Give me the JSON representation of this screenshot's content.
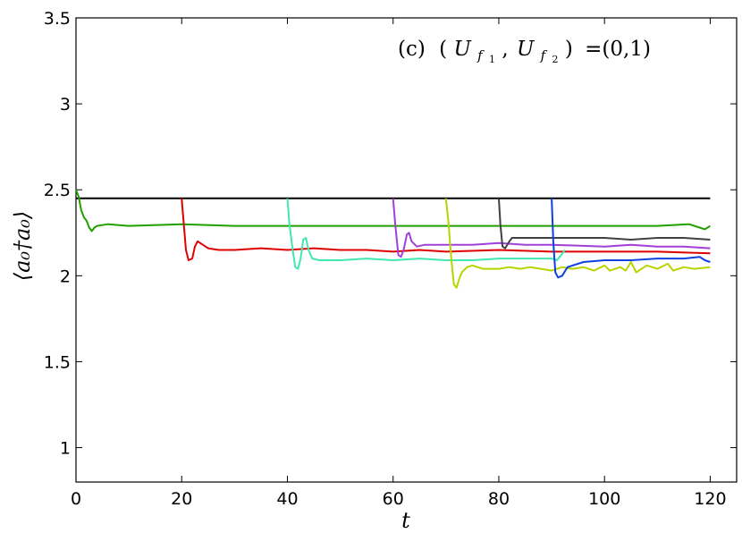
{
  "chart_data": {
    "type": "line",
    "title": "",
    "annotation": "(c) (U_f1, U_f2) =(0,1)",
    "annotation_parts": {
      "prefix": "(c)",
      "open": "(",
      "var": "U",
      "sub1": "f",
      "sub1_sub": "1",
      "sub2": "f",
      "sub2_sub": "2",
      "comma": ",",
      "close": ")",
      "equals_value": "=(0,1)"
    },
    "xlabel": "t",
    "ylabel": "⟨a₀†a₀⟩",
    "xlim": [
      0,
      125
    ],
    "ylim": [
      0.8,
      3.5
    ],
    "xticks": [
      "0",
      "20",
      "40",
      "60",
      "80",
      "100",
      "120"
    ],
    "xtick_values": [
      0,
      20,
      40,
      60,
      80,
      100,
      120
    ],
    "yticks": [
      "1",
      "1.5",
      "2",
      "2.5",
      "3",
      "3.5"
    ],
    "ytick_values": [
      1,
      1.5,
      2,
      2.5,
      3,
      3.5
    ],
    "grid": false,
    "series": [
      {
        "color": "#000000",
        "points": [
          [
            0,
            2.45
          ],
          [
            120,
            2.45
          ]
        ]
      },
      {
        "color": "#22a000",
        "points": [
          [
            0,
            2.5
          ],
          [
            0.5,
            2.46
          ],
          [
            1,
            2.38
          ],
          [
            1.5,
            2.34
          ],
          [
            2,
            2.32
          ],
          [
            2.5,
            2.28
          ],
          [
            3,
            2.26
          ],
          [
            3.5,
            2.28
          ],
          [
            4,
            2.29
          ],
          [
            6,
            2.3
          ],
          [
            10,
            2.29
          ],
          [
            20,
            2.3
          ],
          [
            30,
            2.29
          ],
          [
            40,
            2.29
          ],
          [
            50,
            2.29
          ],
          [
            60,
            2.29
          ],
          [
            70,
            2.29
          ],
          [
            80,
            2.29
          ],
          [
            90,
            2.29
          ],
          [
            100,
            2.29
          ],
          [
            110,
            2.29
          ],
          [
            116,
            2.3
          ],
          [
            118,
            2.28
          ],
          [
            119,
            2.27
          ],
          [
            120,
            2.29
          ]
        ]
      },
      {
        "color": "#e00000",
        "points": [
          [
            20,
            2.45
          ],
          [
            20.4,
            2.3
          ],
          [
            20.8,
            2.15
          ],
          [
            21.3,
            2.09
          ],
          [
            22,
            2.1
          ],
          [
            22.5,
            2.17
          ],
          [
            23,
            2.2
          ],
          [
            24,
            2.18
          ],
          [
            25,
            2.16
          ],
          [
            27,
            2.15
          ],
          [
            30,
            2.15
          ],
          [
            35,
            2.16
          ],
          [
            40,
            2.15
          ],
          [
            45,
            2.16
          ],
          [
            50,
            2.15
          ],
          [
            55,
            2.15
          ],
          [
            60,
            2.14
          ],
          [
            65,
            2.15
          ],
          [
            70,
            2.14
          ],
          [
            80,
            2.15
          ],
          [
            90,
            2.14
          ],
          [
            100,
            2.14
          ],
          [
            110,
            2.14
          ],
          [
            120,
            2.13
          ]
        ]
      },
      {
        "color": "#40e8b0",
        "points": [
          [
            40,
            2.45
          ],
          [
            40.4,
            2.3
          ],
          [
            41,
            2.15
          ],
          [
            41.5,
            2.05
          ],
          [
            42,
            2.04
          ],
          [
            42.5,
            2.1
          ],
          [
            43,
            2.21
          ],
          [
            43.5,
            2.22
          ],
          [
            44,
            2.15
          ],
          [
            44.7,
            2.1
          ],
          [
            46,
            2.09
          ],
          [
            50,
            2.09
          ],
          [
            55,
            2.1
          ],
          [
            60,
            2.09
          ],
          [
            65,
            2.1
          ],
          [
            70,
            2.09
          ],
          [
            75,
            2.09
          ],
          [
            80,
            2.1
          ],
          [
            85,
            2.1
          ],
          [
            90,
            2.1
          ],
          [
            91,
            2.09
          ],
          [
            91.8,
            2.12
          ],
          [
            92.5,
            2.15
          ]
        ]
      },
      {
        "color": "#a040d8",
        "points": [
          [
            60,
            2.45
          ],
          [
            60.4,
            2.3
          ],
          [
            61,
            2.12
          ],
          [
            61.5,
            2.11
          ],
          [
            62,
            2.15
          ],
          [
            62.6,
            2.24
          ],
          [
            63,
            2.25
          ],
          [
            63.5,
            2.2
          ],
          [
            64.5,
            2.17
          ],
          [
            66,
            2.18
          ],
          [
            70,
            2.18
          ],
          [
            75,
            2.18
          ],
          [
            80,
            2.19
          ],
          [
            85,
            2.18
          ],
          [
            90,
            2.18
          ],
          [
            100,
            2.17
          ],
          [
            105,
            2.18
          ],
          [
            110,
            2.17
          ],
          [
            115,
            2.17
          ],
          [
            120,
            2.16
          ]
        ]
      },
      {
        "color": "#b8d400",
        "points": [
          [
            70,
            2.45
          ],
          [
            70.5,
            2.3
          ],
          [
            71,
            2.1
          ],
          [
            71.5,
            1.95
          ],
          [
            72,
            1.93
          ],
          [
            72.5,
            1.98
          ],
          [
            73,
            2.02
          ],
          [
            74,
            2.05
          ],
          [
            75,
            2.06
          ],
          [
            77,
            2.04
          ],
          [
            80,
            2.04
          ],
          [
            82,
            2.05
          ],
          [
            84,
            2.04
          ],
          [
            86,
            2.05
          ],
          [
            88,
            2.04
          ],
          [
            90,
            2.03
          ],
          [
            92,
            2.05
          ],
          [
            94,
            2.04
          ],
          [
            96,
            2.05
          ],
          [
            98,
            2.03
          ],
          [
            100,
            2.06
          ],
          [
            101,
            2.03
          ],
          [
            103,
            2.05
          ],
          [
            104,
            2.03
          ],
          [
            105,
            2.08
          ],
          [
            106,
            2.02
          ],
          [
            108,
            2.06
          ],
          [
            110,
            2.04
          ],
          [
            112,
            2.07
          ],
          [
            113,
            2.03
          ],
          [
            115,
            2.05
          ],
          [
            117,
            2.04
          ],
          [
            120,
            2.05
          ]
        ]
      },
      {
        "color": "#404040",
        "points": [
          [
            80,
            2.45
          ],
          [
            80.3,
            2.3
          ],
          [
            80.7,
            2.17
          ],
          [
            81.2,
            2.16
          ],
          [
            82,
            2.2
          ],
          [
            82.5,
            2.22
          ],
          [
            85,
            2.22
          ],
          [
            90,
            2.22
          ],
          [
            95,
            2.22
          ],
          [
            100,
            2.22
          ],
          [
            105,
            2.21
          ],
          [
            110,
            2.22
          ],
          [
            115,
            2.22
          ],
          [
            120,
            2.21
          ]
        ]
      },
      {
        "color": "#1040e0",
        "points": [
          [
            90,
            2.45
          ],
          [
            90.3,
            2.2
          ],
          [
            90.7,
            2.02
          ],
          [
            91.2,
            1.99
          ],
          [
            92,
            2.0
          ],
          [
            93,
            2.05
          ],
          [
            94,
            2.06
          ],
          [
            96,
            2.08
          ],
          [
            100,
            2.09
          ],
          [
            105,
            2.09
          ],
          [
            110,
            2.1
          ],
          [
            115,
            2.1
          ],
          [
            118,
            2.11
          ],
          [
            119,
            2.09
          ],
          [
            120,
            2.08
          ]
        ]
      }
    ]
  }
}
